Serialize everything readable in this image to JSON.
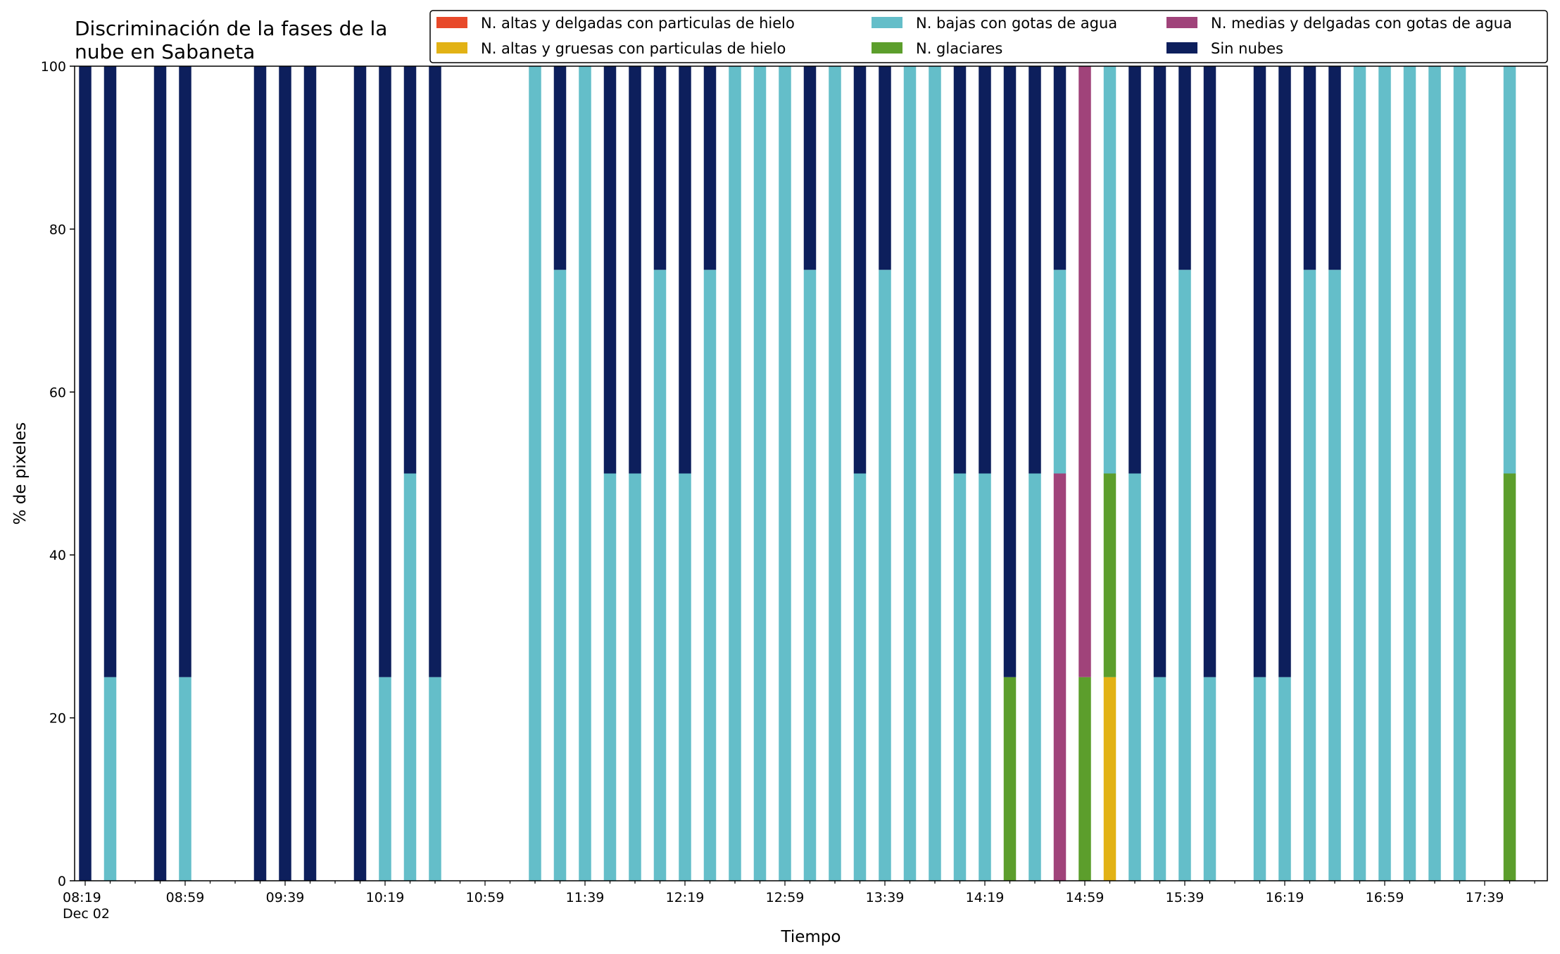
{
  "chart_data": {
    "type": "bar",
    "stacked": true,
    "title_lines": [
      "Discriminación de la fases de la",
      "nube en Sabaneta"
    ],
    "xlabel": "Tiempo",
    "ylabel": "% de pixeles",
    "ylim": [
      0,
      100
    ],
    "yticks": [
      0,
      20,
      40,
      60,
      80,
      100
    ],
    "xlim": [
      0,
      58
    ],
    "x_major_ticks": [
      {
        "slot": 0,
        "label": "08:19",
        "sublabel": "Dec 02"
      },
      {
        "slot": 4,
        "label": "08:59"
      },
      {
        "slot": 8,
        "label": "09:39"
      },
      {
        "slot": 12,
        "label": "10:19"
      },
      {
        "slot": 16,
        "label": "10:59"
      },
      {
        "slot": 20,
        "label": "11:39"
      },
      {
        "slot": 24,
        "label": "12:19"
      },
      {
        "slot": 28,
        "label": "12:59"
      },
      {
        "slot": 32,
        "label": "13:39"
      },
      {
        "slot": 36,
        "label": "14:19"
      },
      {
        "slot": 40,
        "label": "14:59"
      },
      {
        "slot": 44,
        "label": "15:39"
      },
      {
        "slot": 48,
        "label": "16:19"
      },
      {
        "slot": 52,
        "label": "16:59"
      },
      {
        "slot": 56,
        "label": "17:39"
      }
    ],
    "x_minor_step": 1,
    "grid": false,
    "legend_position": "top-right",
    "series": [
      {
        "key": "altas_delgadas",
        "name": "N. altas y delgadas con particulas de hielo",
        "color": "#e8492a"
      },
      {
        "key": "altas_gruesas",
        "name": "N. altas y gruesas con particulas de hielo",
        "color": "#e2b215"
      },
      {
        "key": "bajas_agua",
        "name": "N. bajas con gotas de agua",
        "color": "#64bec9"
      },
      {
        "key": "glaciares",
        "name": "N. glaciares",
        "color": "#5c9e2c"
      },
      {
        "key": "medias_delgadas",
        "name": "N. medias y delgadas con gotas de agua",
        "color": "#a0437a"
      },
      {
        "key": "sin_nubes",
        "name": "Sin nubes",
        "color": "#0d1f5c"
      }
    ],
    "stack_order": [
      "altas_delgadas",
      "altas_gruesas",
      "glaciares",
      "medias_delgadas",
      "bajas_agua",
      "sin_nubes"
    ],
    "bars": [
      {
        "slot": 0,
        "sin_nubes": 100
      },
      {
        "slot": 1,
        "bajas_agua": 25,
        "sin_nubes": 75
      },
      {
        "slot": 3,
        "sin_nubes": 100
      },
      {
        "slot": 4,
        "bajas_agua": 25,
        "sin_nubes": 75
      },
      {
        "slot": 7,
        "sin_nubes": 100
      },
      {
        "slot": 8,
        "sin_nubes": 100
      },
      {
        "slot": 9,
        "sin_nubes": 100
      },
      {
        "slot": 11,
        "sin_nubes": 100
      },
      {
        "slot": 12,
        "bajas_agua": 25,
        "sin_nubes": 75
      },
      {
        "slot": 13,
        "bajas_agua": 50,
        "sin_nubes": 50
      },
      {
        "slot": 14,
        "bajas_agua": 25,
        "sin_nubes": 75
      },
      {
        "slot": 18,
        "bajas_agua": 100
      },
      {
        "slot": 19,
        "bajas_agua": 75,
        "sin_nubes": 25
      },
      {
        "slot": 20,
        "bajas_agua": 100
      },
      {
        "slot": 21,
        "bajas_agua": 50,
        "sin_nubes": 50
      },
      {
        "slot": 22,
        "bajas_agua": 50,
        "sin_nubes": 50
      },
      {
        "slot": 23,
        "bajas_agua": 75,
        "sin_nubes": 25
      },
      {
        "slot": 24,
        "bajas_agua": 50,
        "sin_nubes": 50
      },
      {
        "slot": 25,
        "bajas_agua": 75,
        "sin_nubes": 25
      },
      {
        "slot": 26,
        "bajas_agua": 100
      },
      {
        "slot": 27,
        "bajas_agua": 100
      },
      {
        "slot": 28,
        "bajas_agua": 100
      },
      {
        "slot": 29,
        "bajas_agua": 75,
        "sin_nubes": 25
      },
      {
        "slot": 30,
        "bajas_agua": 100
      },
      {
        "slot": 31,
        "bajas_agua": 50,
        "sin_nubes": 50
      },
      {
        "slot": 32,
        "bajas_agua": 75,
        "sin_nubes": 25
      },
      {
        "slot": 33,
        "bajas_agua": 100
      },
      {
        "slot": 34,
        "bajas_agua": 100
      },
      {
        "slot": 35,
        "bajas_agua": 50,
        "sin_nubes": 50
      },
      {
        "slot": 36,
        "bajas_agua": 50,
        "sin_nubes": 50
      },
      {
        "slot": 37,
        "glaciares": 25,
        "sin_nubes": 75
      },
      {
        "slot": 38,
        "bajas_agua": 50,
        "sin_nubes": 50
      },
      {
        "slot": 39,
        "bajas_agua": 25,
        "medias_delgadas": 50,
        "sin_nubes": 25
      },
      {
        "slot": 40,
        "glaciares": 25,
        "medias_delgadas": 75
      },
      {
        "slot": 41,
        "altas_gruesas": 25,
        "bajas_agua": 50,
        "glaciares": 25
      },
      {
        "slot": 42,
        "bajas_agua": 50,
        "sin_nubes": 50
      },
      {
        "slot": 43,
        "bajas_agua": 25,
        "sin_nubes": 75
      },
      {
        "slot": 44,
        "bajas_agua": 75,
        "sin_nubes": 25
      },
      {
        "slot": 45,
        "bajas_agua": 25,
        "sin_nubes": 75
      },
      {
        "slot": 47,
        "bajas_agua": 25,
        "sin_nubes": 75
      },
      {
        "slot": 48,
        "bajas_agua": 25,
        "sin_nubes": 75
      },
      {
        "slot": 49,
        "bajas_agua": 75,
        "sin_nubes": 25
      },
      {
        "slot": 50,
        "bajas_agua": 75,
        "sin_nubes": 25
      },
      {
        "slot": 51,
        "bajas_agua": 100
      },
      {
        "slot": 52,
        "bajas_agua": 100
      },
      {
        "slot": 53,
        "bajas_agua": 100
      },
      {
        "slot": 54,
        "bajas_agua": 100
      },
      {
        "slot": 55,
        "bajas_agua": 100
      },
      {
        "slot": 57,
        "bajas_agua": 50,
        "glaciares": 50
      }
    ]
  }
}
